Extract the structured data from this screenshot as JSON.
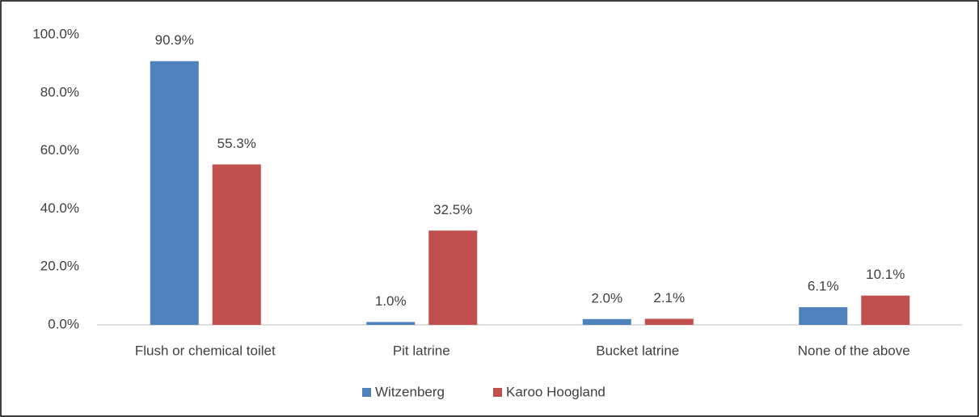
{
  "chart_data": {
    "type": "bar",
    "categories": [
      "Flush or chemical toilet",
      "Pit latrine",
      "Bucket latrine",
      "None of the above"
    ],
    "series": [
      {
        "name": "Witzenberg",
        "color": "#4f81bd",
        "values": [
          90.9,
          1.0,
          2.0,
          6.1
        ],
        "value_labels": [
          "90.9%",
          "1.0%",
          "2.0%",
          "6.1%"
        ]
      },
      {
        "name": "Karoo Hoogland",
        "color": "#c0504d",
        "values": [
          55.3,
          32.5,
          2.1,
          10.1
        ],
        "value_labels": [
          "55.3%",
          "32.5%",
          "2.1%",
          "10.1%"
        ]
      }
    ],
    "ylim": [
      0,
      100
    ],
    "yticks": [
      {
        "value": 0,
        "label": "0.0%"
      },
      {
        "value": 20,
        "label": "20.0%"
      },
      {
        "value": 40,
        "label": "40.0%"
      },
      {
        "value": 60,
        "label": "60.0%"
      },
      {
        "value": 80,
        "label": "80.0%"
      },
      {
        "value": 100,
        "label": "100.0%"
      }
    ],
    "grid": false,
    "legend": "bottom"
  }
}
